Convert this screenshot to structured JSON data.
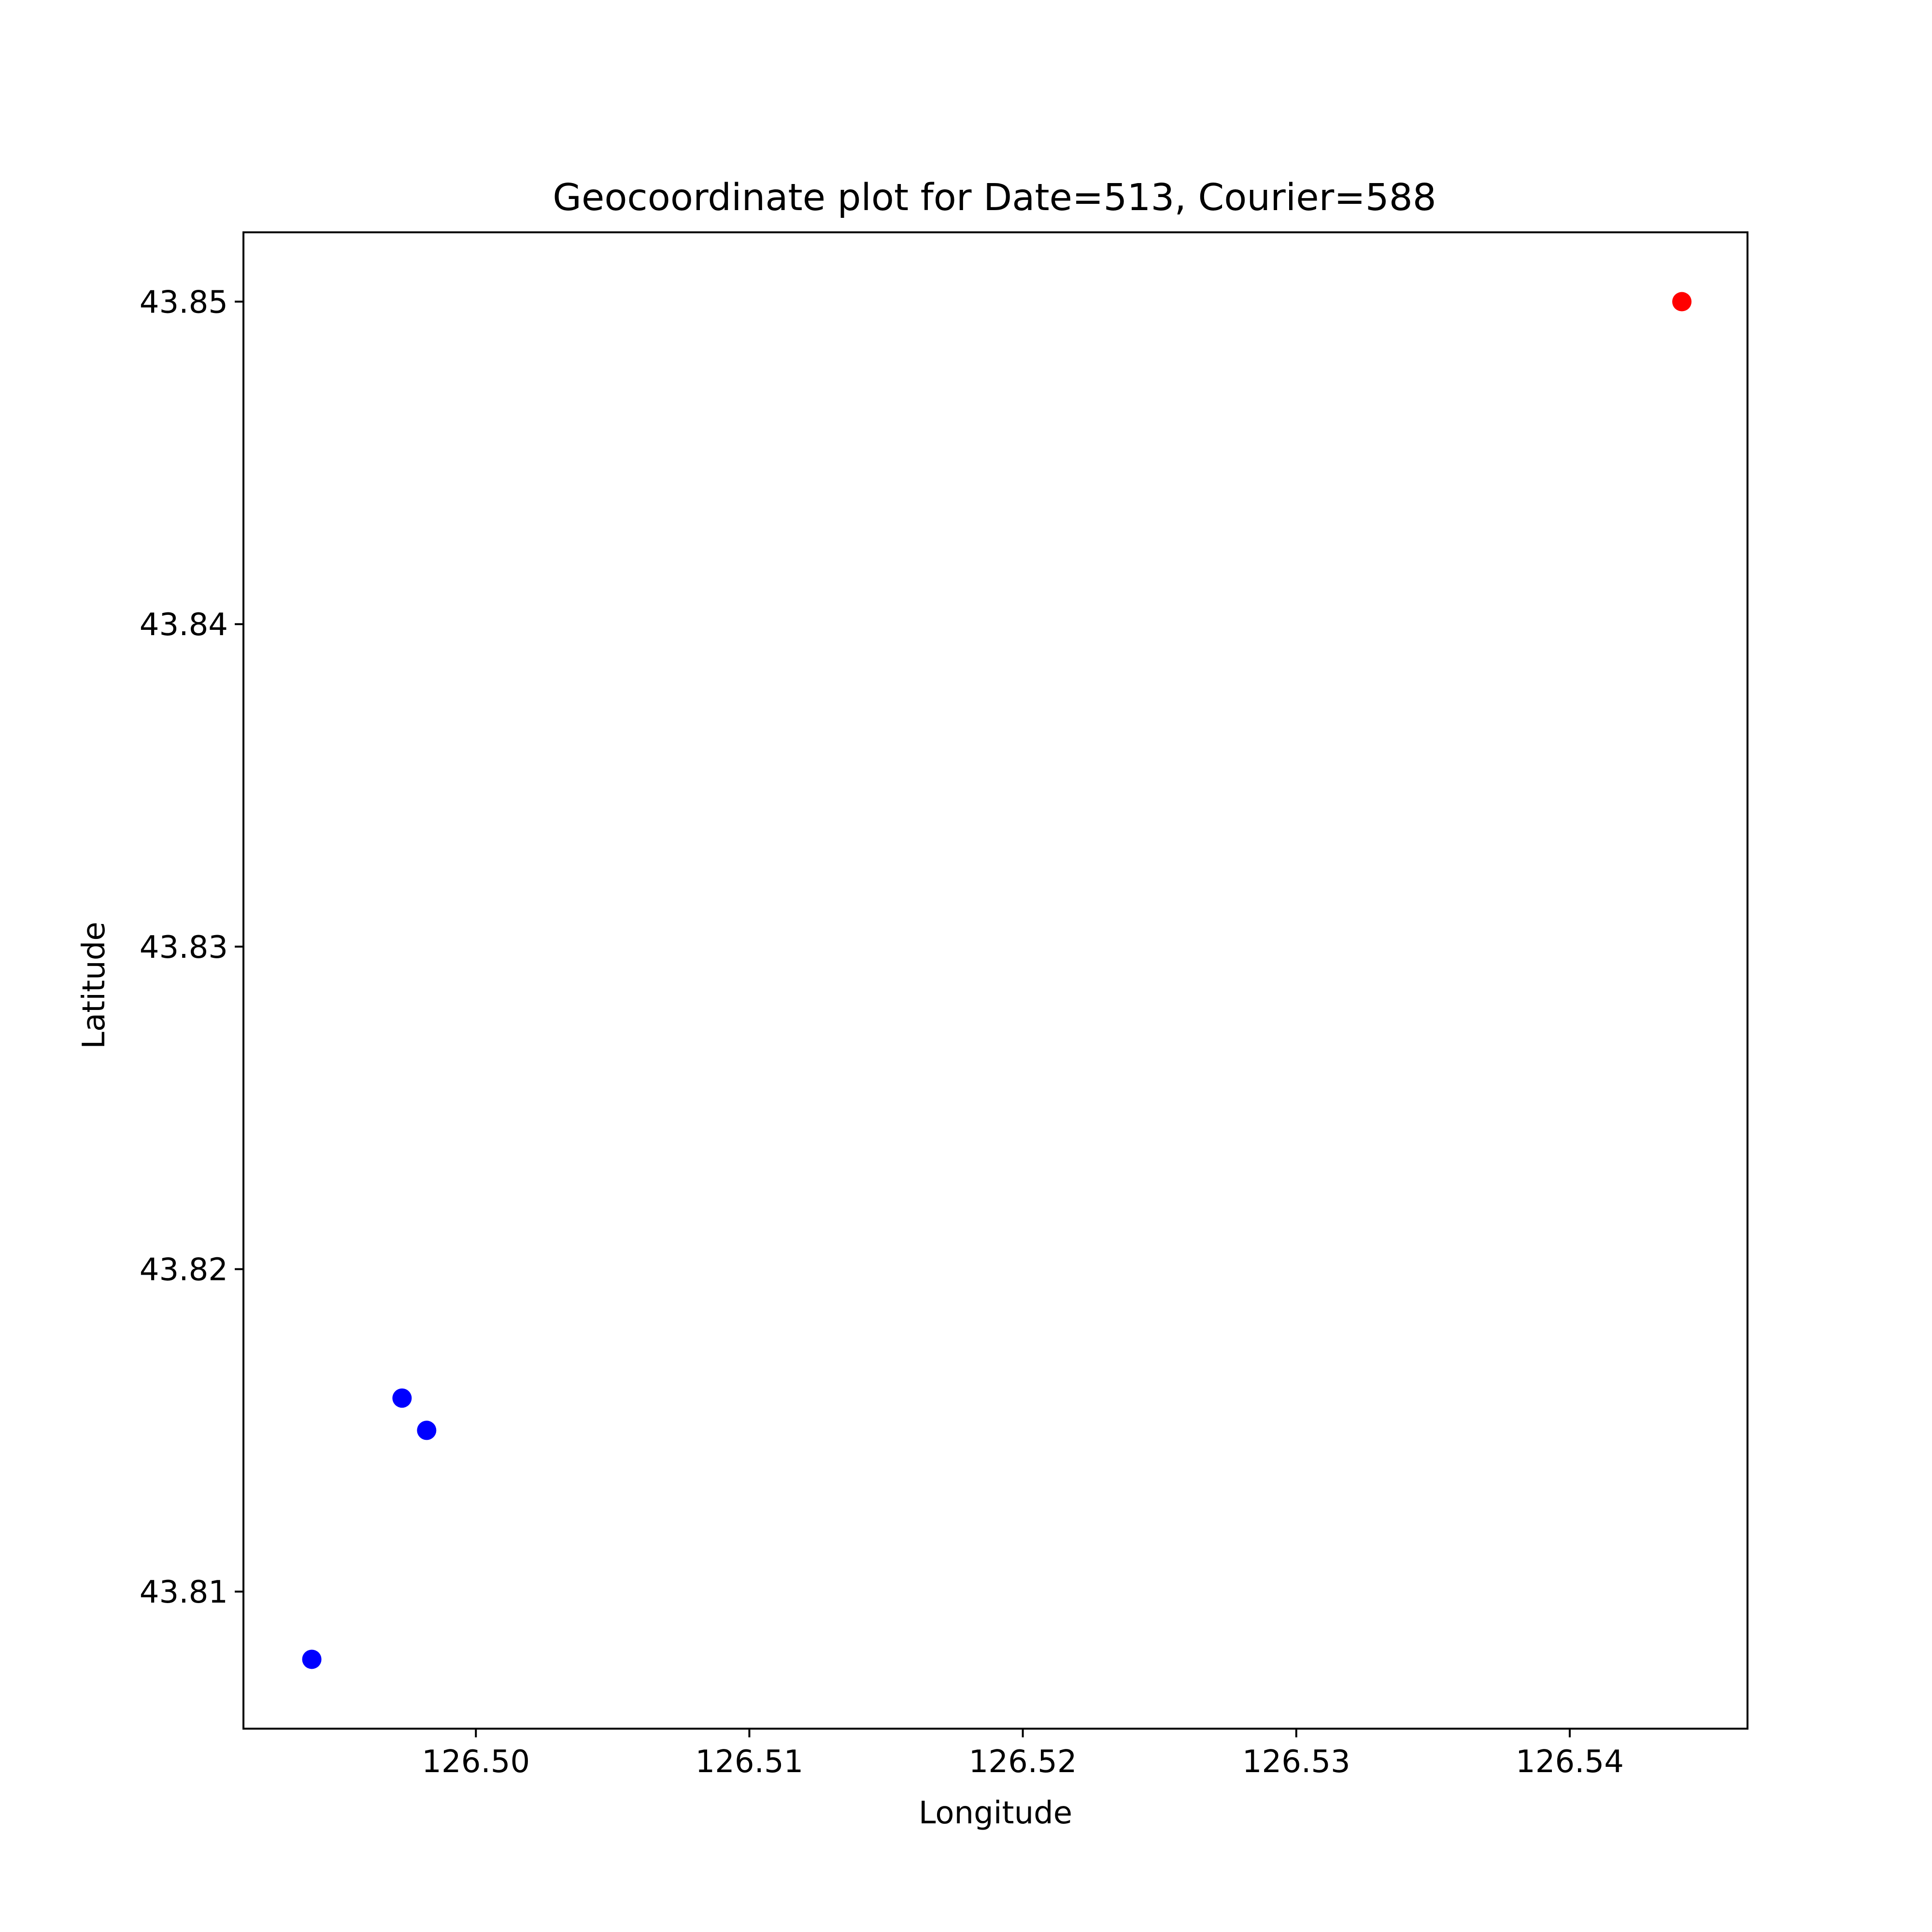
{
  "chart_data": {
    "type": "scatter",
    "title": "Geocoordinate plot for Date=513, Courier=588",
    "xlabel": "Longitude",
    "ylabel": "Latitude",
    "xlim": [
      126.4915,
      126.5465
    ],
    "ylim": [
      43.80575,
      43.85215
    ],
    "xticks": [
      126.5,
      126.51,
      126.52,
      126.53,
      126.54
    ],
    "xtick_labels": [
      "126.50",
      "126.51",
      "126.52",
      "126.53",
      "126.54"
    ],
    "yticks": [
      43.81,
      43.82,
      43.83,
      43.84,
      43.85
    ],
    "ytick_labels": [
      "43.81",
      "43.82",
      "43.83",
      "43.84",
      "43.85"
    ],
    "grid": false,
    "legend": "none",
    "points": [
      {
        "x": 126.494,
        "y": 43.8079,
        "color": "#0000ff"
      },
      {
        "x": 126.4973,
        "y": 43.816,
        "color": "#0000ff"
      },
      {
        "x": 126.4982,
        "y": 43.815,
        "color": "#0000ff"
      },
      {
        "x": 126.5441,
        "y": 43.85,
        "color": "#ff0000"
      }
    ]
  }
}
